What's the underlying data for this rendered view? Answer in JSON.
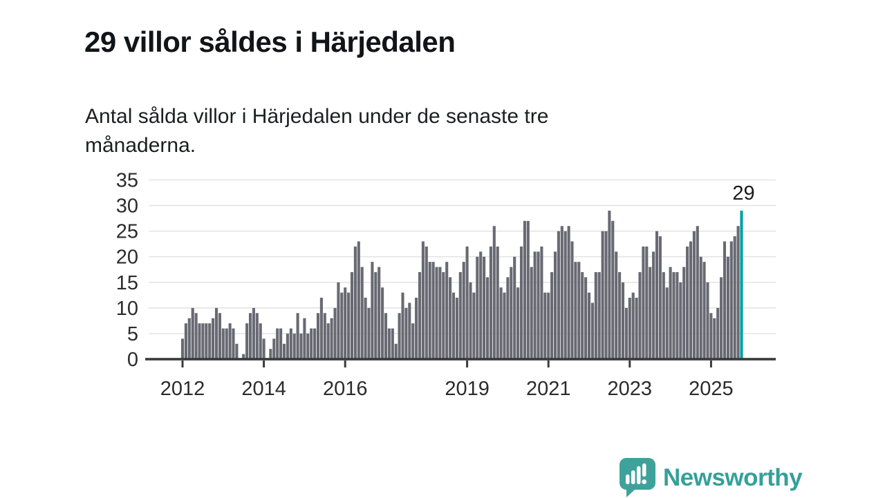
{
  "header": {
    "title": "29 villor såldes i Härjedalen",
    "subtitle_lines": [
      "Antal sålda villor i Härjedalen under de senaste tre",
      "månaderna."
    ]
  },
  "chart_data": {
    "type": "bar",
    "description": "Monthly bars, January 2012 through October 2025",
    "x_start": "2012-01",
    "values": [
      4,
      7,
      8,
      10,
      9,
      7,
      7,
      7,
      7,
      8,
      10,
      9,
      6,
      6,
      7,
      6,
      3,
      0,
      1,
      7,
      9,
      10,
      9,
      7,
      4,
      0,
      2,
      4,
      6,
      6,
      3,
      5,
      6,
      5,
      9,
      5,
      8,
      5,
      6,
      6,
      9,
      12,
      9,
      7,
      8,
      10,
      15,
      13,
      14,
      13,
      17,
      22,
      23,
      18,
      12,
      10,
      19,
      17,
      18,
      14,
      9,
      6,
      6,
      3,
      9,
      13,
      10,
      11,
      7,
      12,
      17,
      23,
      22,
      19,
      19,
      18,
      18,
      17,
      19,
      16,
      13,
      12,
      17,
      19,
      22,
      15,
      13,
      20,
      21,
      20,
      16,
      22,
      26,
      22,
      14,
      13,
      16,
      18,
      20,
      14,
      22,
      27,
      27,
      18,
      21,
      21,
      22,
      13,
      13,
      17,
      21,
      25,
      26,
      25,
      26,
      23,
      19,
      19,
      17,
      16,
      13,
      11,
      17,
      17,
      25,
      25,
      29,
      27,
      21,
      17,
      15,
      10,
      12,
      13,
      12,
      17,
      22,
      22,
      18,
      21,
      25,
      24,
      17,
      14,
      18,
      17,
      17,
      15,
      18,
      22,
      23,
      25,
      26,
      20,
      19,
      15,
      9,
      8,
      10,
      16,
      23,
      20,
      23,
      24,
      26,
      29
    ],
    "highlight_last_bar": true,
    "annotation": {
      "text": "29",
      "on": "last-bar"
    },
    "ylim": [
      0,
      35
    ],
    "yticks": [
      0,
      5,
      10,
      15,
      20,
      25,
      30,
      35
    ],
    "xticks": [
      {
        "label": "2012",
        "month_index": 0
      },
      {
        "label": "2014",
        "month_index": 24
      },
      {
        "label": "2016",
        "month_index": 48
      },
      {
        "label": "2019",
        "month_index": 84
      },
      {
        "label": "2021",
        "month_index": 108
      },
      {
        "label": "2023",
        "month_index": 132
      },
      {
        "label": "2025",
        "month_index": 156
      }
    ],
    "grid": true,
    "legend": "none",
    "colors": {
      "bar": "#696973",
      "highlight": "#00A0A0",
      "gridline": "#e4e4e4",
      "axis": "#3a3a3a",
      "tick_label": "#2b2b2b",
      "annotation_text": "#1a1a1a"
    }
  },
  "footer": {
    "brand": "Newsworthy",
    "brand_color": "#35A09A",
    "logo_icon": "bar-chart-speech-bubble"
  }
}
